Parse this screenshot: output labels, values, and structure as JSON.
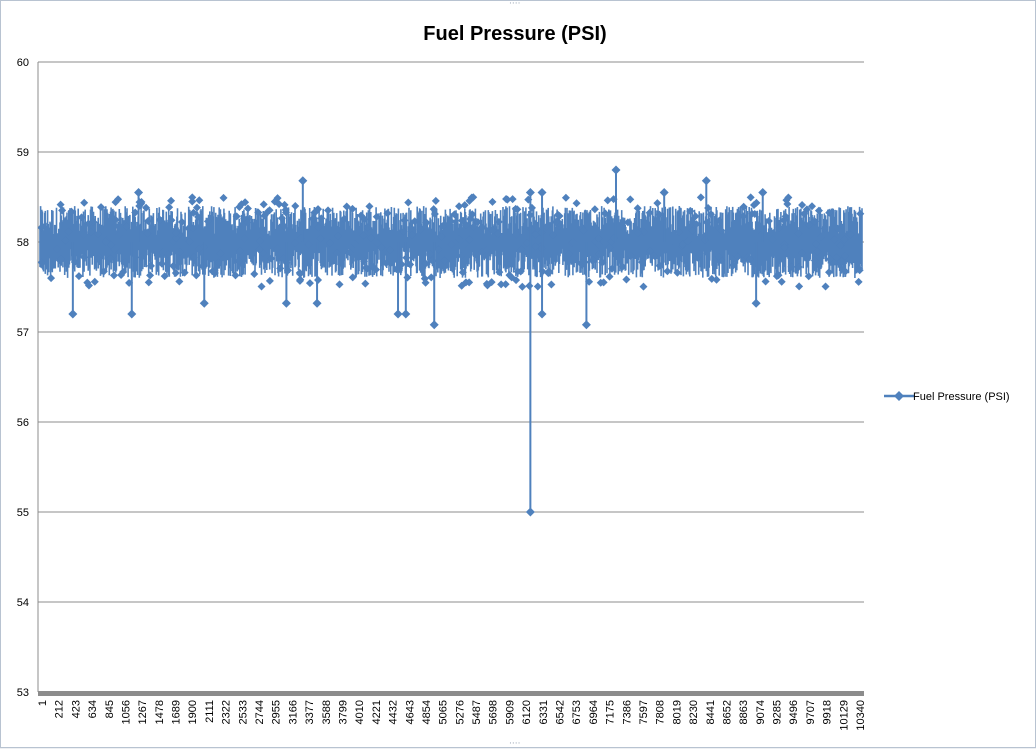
{
  "chart_data": {
    "type": "line",
    "title": "Fuel Pressure (PSI)",
    "xlabel": "",
    "ylabel": "",
    "ylim": [
      53,
      60
    ],
    "yticks": [
      53,
      54,
      55,
      56,
      57,
      58,
      59,
      60
    ],
    "grid": true,
    "legend_position": "right",
    "series_color": "#4f81bd",
    "x_tick_labels": [
      "1",
      "212",
      "423",
      "634",
      "845",
      "1056",
      "1267",
      "1478",
      "1689",
      "1900",
      "2111",
      "2322",
      "2533",
      "2744",
      "2955",
      "3166",
      "3377",
      "3588",
      "3799",
      "4010",
      "4221",
      "4432",
      "4643",
      "4854",
      "5065",
      "5276",
      "5487",
      "5698",
      "5909",
      "6120",
      "6331",
      "6542",
      "6753",
      "6964",
      "7175",
      "7386",
      "7597",
      "7808",
      "8019",
      "8230",
      "8441",
      "8652",
      "8863",
      "9074",
      "9285",
      "9496",
      "9707",
      "9918",
      "10129",
      "10340"
    ],
    "x_range": [
      1,
      10560
    ],
    "baseline_level": 58.0,
    "typical_band": [
      57.7,
      58.3
    ],
    "notable_points": [
      {
        "x": 6300,
        "y": 55.0
      },
      {
        "x": 6300,
        "y": 58.55
      },
      {
        "x": 6450,
        "y": 58.55
      },
      {
        "x": 6450,
        "y": 57.2
      },
      {
        "x": 7400,
        "y": 58.8
      },
      {
        "x": 3377,
        "y": 58.68
      },
      {
        "x": 8560,
        "y": 58.68
      },
      {
        "x": 1267,
        "y": 58.55
      },
      {
        "x": 9285,
        "y": 58.55
      },
      {
        "x": 8019,
        "y": 58.55
      },
      {
        "x": 5065,
        "y": 57.08
      },
      {
        "x": 7020,
        "y": 57.08
      },
      {
        "x": 423,
        "y": 57.2
      },
      {
        "x": 1180,
        "y": 57.2
      },
      {
        "x": 4600,
        "y": 57.2
      },
      {
        "x": 4700,
        "y": 57.2
      },
      {
        "x": 9200,
        "y": 57.32
      },
      {
        "x": 2111,
        "y": 57.32
      },
      {
        "x": 3166,
        "y": 57.32
      },
      {
        "x": 3560,
        "y": 57.32
      }
    ],
    "series": [
      {
        "name": "Fuel Pressure (PSI)"
      }
    ]
  }
}
